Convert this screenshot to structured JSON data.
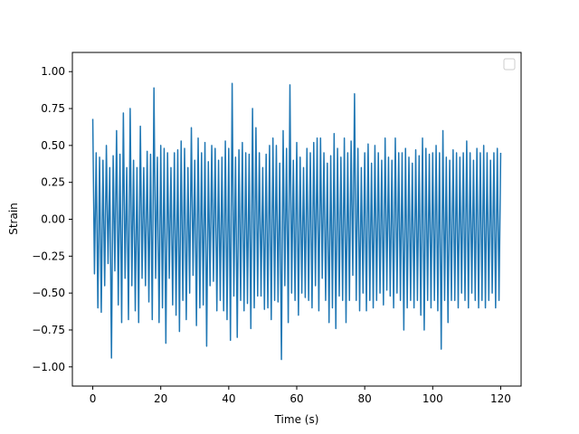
{
  "chart_data": {
    "type": "line",
    "xlabel": "Time (s)",
    "ylabel": "Strain",
    "xlim": [
      -6,
      126
    ],
    "ylim": [
      -1.13,
      1.13
    ],
    "x_ticks": [
      0,
      20,
      40,
      60,
      80,
      100,
      120
    ],
    "x_tick_labels": [
      "0",
      "20",
      "40",
      "60",
      "80",
      "100",
      "120"
    ],
    "y_ticks": [
      -1.0,
      -0.75,
      -0.5,
      -0.25,
      0.0,
      0.25,
      0.5,
      0.75,
      1.0
    ],
    "y_tick_labels": [
      "−1.00",
      "−0.75",
      "−0.50",
      "−0.25",
      "0.00",
      "0.25",
      "0.50",
      "0.75",
      "1.00"
    ],
    "grid": false,
    "legend": {
      "placement": "upper-right",
      "entries": []
    },
    "series": [
      {
        "color": "#1f77b4",
        "x": [
          0.0,
          0.5,
          1.0,
          1.5,
          2.0,
          2.5,
          3.0,
          3.5,
          4.0,
          4.5,
          5.0,
          5.5,
          6.0,
          6.5,
          7.0,
          7.5,
          8.0,
          8.5,
          9.0,
          9.5,
          10.0,
          10.5,
          11.0,
          11.5,
          12.0,
          12.5,
          13.0,
          13.5,
          14.0,
          14.5,
          15.0,
          15.5,
          16.0,
          16.5,
          17.0,
          17.5,
          18.0,
          18.5,
          19.0,
          19.5,
          20.0,
          20.5,
          21.0,
          21.5,
          22.0,
          22.5,
          23.0,
          23.5,
          24.0,
          24.5,
          25.0,
          25.5,
          26.0,
          26.5,
          27.0,
          27.5,
          28.0,
          28.5,
          29.0,
          29.5,
          30.0,
          30.5,
          31.0,
          31.5,
          32.0,
          32.5,
          33.0,
          33.5,
          34.0,
          34.5,
          35.0,
          35.5,
          36.0,
          36.5,
          37.0,
          37.5,
          38.0,
          38.5,
          39.0,
          39.5,
          40.0,
          40.5,
          41.0,
          41.5,
          42.0,
          42.5,
          43.0,
          43.5,
          44.0,
          44.5,
          45.0,
          45.5,
          46.0,
          46.5,
          47.0,
          47.5,
          48.0,
          48.5,
          49.0,
          49.5,
          50.0,
          50.5,
          51.0,
          51.5,
          52.0,
          52.5,
          53.0,
          53.5,
          54.0,
          54.5,
          55.0,
          55.5,
          56.0,
          56.5,
          57.0,
          57.5,
          58.0,
          58.5,
          59.0,
          59.5,
          60.0,
          60.5,
          61.0,
          61.5,
          62.0,
          62.5,
          63.0,
          63.5,
          64.0,
          64.5,
          65.0,
          65.5,
          66.0,
          66.5,
          67.0,
          67.5,
          68.0,
          68.5,
          69.0,
          69.5,
          70.0,
          70.5,
          71.0,
          71.5,
          72.0,
          72.5,
          73.0,
          73.5,
          74.0,
          74.5,
          75.0,
          75.5,
          76.0,
          76.5,
          77.0,
          77.5,
          78.0,
          78.5,
          79.0,
          79.5,
          80.0,
          80.5,
          81.0,
          81.5,
          82.0,
          82.5,
          83.0,
          83.5,
          84.0,
          84.5,
          85.0,
          85.5,
          86.0,
          86.5,
          87.0,
          87.5,
          88.0,
          88.5,
          89.0,
          89.5,
          90.0,
          90.5,
          91.0,
          91.5,
          92.0,
          92.5,
          93.0,
          93.5,
          94.0,
          94.5,
          95.0,
          95.5,
          96.0,
          96.5,
          97.0,
          97.5,
          98.0,
          98.5,
          99.0,
          99.5,
          100.0,
          100.5,
          101.0,
          101.5,
          102.0,
          102.5,
          103.0,
          103.5,
          104.0,
          104.5,
          105.0,
          105.5,
          106.0,
          106.5,
          107.0,
          107.5,
          108.0,
          108.5,
          109.0,
          109.5,
          110.0,
          110.5,
          111.0,
          111.5,
          112.0,
          112.5,
          113.0,
          113.5,
          114.0,
          114.5,
          115.0,
          115.5,
          116.0,
          116.5,
          117.0,
          117.5,
          118.0,
          118.5,
          119.0,
          119.5,
          120.0
        ],
        "y": [
          0.68,
          -0.37,
          0.45,
          -0.6,
          0.42,
          -0.63,
          0.4,
          -0.45,
          0.5,
          -0.3,
          0.35,
          -0.94,
          0.43,
          -0.35,
          0.6,
          -0.58,
          0.44,
          -0.7,
          0.72,
          -0.4,
          0.35,
          -0.68,
          0.75,
          -0.45,
          0.4,
          -0.62,
          0.35,
          -0.7,
          0.63,
          -0.4,
          0.35,
          -0.45,
          0.46,
          -0.56,
          0.44,
          -0.68,
          0.89,
          -0.4,
          0.42,
          -0.7,
          0.5,
          -0.6,
          0.48,
          -0.84,
          0.45,
          -0.4,
          0.35,
          -0.58,
          0.45,
          -0.65,
          0.47,
          -0.76,
          0.53,
          -0.55,
          0.48,
          -0.68,
          0.35,
          -0.5,
          0.62,
          -0.38,
          0.4,
          -0.72,
          0.55,
          -0.6,
          0.45,
          -0.58,
          0.52,
          -0.86,
          0.39,
          -0.45,
          0.5,
          -0.42,
          0.48,
          -0.62,
          0.4,
          -0.55,
          0.42,
          -0.62,
          0.53,
          -0.68,
          0.48,
          -0.82,
          0.92,
          -0.52,
          0.42,
          -0.8,
          0.47,
          -0.55,
          0.52,
          -0.62,
          0.45,
          -0.57,
          0.44,
          -0.74,
          0.75,
          -0.6,
          0.62,
          -0.52,
          0.45,
          -0.52,
          0.35,
          -0.61,
          0.44,
          -0.6,
          0.5,
          -0.68,
          0.55,
          -0.55,
          0.5,
          -0.56,
          0.38,
          -0.95,
          0.6,
          -0.45,
          0.48,
          -0.7,
          0.91,
          -0.5,
          0.4,
          -0.55,
          0.52,
          -0.65,
          0.42,
          -0.5,
          0.35,
          -0.53,
          0.48,
          -0.55,
          0.45,
          -0.6,
          0.52,
          -0.45,
          0.55,
          -0.62,
          0.55,
          -0.4,
          0.45,
          -0.55,
          0.38,
          -0.7,
          0.43,
          -0.6,
          0.58,
          -0.74,
          0.48,
          -0.52,
          0.42,
          -0.55,
          0.55,
          -0.7,
          0.45,
          -0.55,
          0.53,
          -0.38,
          0.85,
          -0.55,
          0.48,
          -0.62,
          0.35,
          -0.5,
          0.45,
          -0.62,
          0.51,
          -0.55,
          0.38,
          -0.6,
          0.5,
          -0.55,
          0.45,
          -0.5,
          0.4,
          -0.58,
          0.55,
          -0.48,
          0.42,
          -0.52,
          0.4,
          -0.6,
          0.55,
          -0.5,
          0.45,
          -0.55,
          0.45,
          -0.75,
          0.48,
          -0.6,
          0.42,
          -0.55,
          0.38,
          -0.6,
          0.47,
          -0.55,
          0.43,
          -0.65,
          0.55,
          -0.75,
          0.48,
          -0.55,
          0.44,
          -0.6,
          0.45,
          -0.55,
          0.5,
          -0.62,
          0.45,
          -0.88,
          0.6,
          -0.55,
          0.42,
          -0.7,
          0.4,
          -0.55,
          0.47,
          -0.55,
          0.45,
          -0.6,
          0.42,
          -0.5,
          0.45,
          -0.55,
          0.53,
          -0.6,
          0.45,
          -0.5,
          0.4,
          -0.55,
          0.48,
          -0.6,
          0.45,
          -0.55,
          0.5,
          -0.6,
          0.45,
          -0.55,
          0.4,
          -0.5,
          0.45,
          -0.6,
          0.48,
          -0.55,
          0.45
        ]
      }
    ]
  }
}
